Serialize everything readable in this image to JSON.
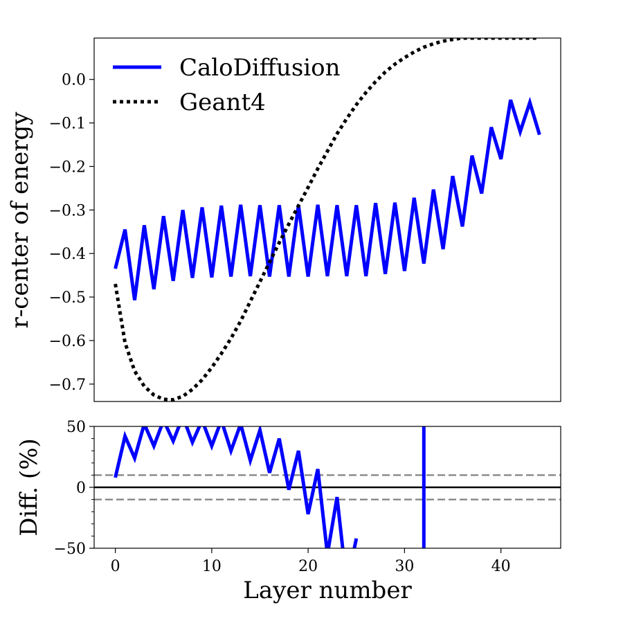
{
  "chart_data": [
    {
      "type": "line",
      "panel": "main",
      "title": "",
      "ylabel": "r-center of energy",
      "xlabel": "",
      "xlim": [
        -2.2,
        46.2
      ],
      "ylim": [
        -0.74,
        0.095
      ],
      "yticks": [
        0.0,
        -0.1,
        -0.2,
        -0.3,
        -0.4,
        -0.5,
        -0.6,
        -0.7
      ],
      "ytick_labels": [
        "0.0",
        "−0.1",
        "−0.2",
        "−0.3",
        "−0.4",
        "−0.5",
        "−0.6",
        "−0.7"
      ],
      "legend_placement": "top-left",
      "grid": false,
      "series": [
        {
          "name": "CaloDiffusion",
          "color": "#0000ff",
          "style": "solid",
          "x": [
            0,
            1,
            2,
            3,
            4,
            5,
            6,
            7,
            8,
            9,
            10,
            11,
            12,
            13,
            14,
            15,
            16,
            17,
            18,
            19,
            20,
            21,
            22,
            23,
            24,
            25,
            26,
            27,
            28,
            29,
            30,
            31,
            32,
            33,
            34,
            35,
            36,
            37,
            38,
            39,
            40,
            41,
            42,
            43,
            44
          ],
          "y": [
            -0.435,
            -0.345,
            -0.507,
            -0.335,
            -0.482,
            -0.314,
            -0.463,
            -0.3,
            -0.456,
            -0.294,
            -0.455,
            -0.29,
            -0.453,
            -0.288,
            -0.452,
            -0.289,
            -0.453,
            -0.289,
            -0.453,
            -0.289,
            -0.453,
            -0.288,
            -0.452,
            -0.289,
            -0.452,
            -0.289,
            -0.452,
            -0.284,
            -0.447,
            -0.283,
            -0.44,
            -0.272,
            -0.423,
            -0.253,
            -0.39,
            -0.222,
            -0.338,
            -0.175,
            -0.262,
            -0.11,
            -0.183,
            -0.047,
            -0.12,
            -0.053,
            -0.127
          ]
        },
        {
          "name": "Geant4",
          "color": "#000000",
          "style": "dotted",
          "x": [
            0,
            1,
            2,
            3,
            4,
            5,
            6,
            7,
            8,
            9,
            10,
            11,
            12,
            13,
            14,
            15,
            16,
            17,
            18,
            19,
            20,
            21,
            22,
            23,
            24,
            25,
            26,
            27,
            28,
            29,
            30,
            31,
            32,
            33,
            34,
            35,
            36,
            37,
            38,
            39,
            40,
            41,
            42,
            43,
            44
          ],
          "y": [
            -0.47,
            -0.605,
            -0.67,
            -0.705,
            -0.725,
            -0.735,
            -0.736,
            -0.728,
            -0.712,
            -0.69,
            -0.662,
            -0.63,
            -0.595,
            -0.555,
            -0.51,
            -0.465,
            -0.42,
            -0.375,
            -0.332,
            -0.29,
            -0.248,
            -0.205,
            -0.165,
            -0.125,
            -0.09,
            -0.058,
            -0.03,
            -0.005,
            0.017,
            0.035,
            0.05,
            0.063,
            0.074,
            0.082,
            0.088,
            0.092,
            0.095,
            0.095,
            0.095,
            0.095,
            0.095,
            0.095,
            0.095,
            0.095,
            0.095
          ]
        }
      ]
    },
    {
      "type": "line",
      "panel": "ratio",
      "title": "",
      "xlabel": "Layer number",
      "ylabel": "Diff.  (%)",
      "xlim": [
        -2.2,
        46.2
      ],
      "ylim": [
        -50,
        50
      ],
      "xticks": [
        0,
        10,
        20,
        30,
        40
      ],
      "xtick_labels": [
        "0",
        "10",
        "20",
        "30",
        "40"
      ],
      "yticks": [
        50,
        0,
        -50
      ],
      "ytick_labels": [
        "50",
        "0",
        "−50"
      ],
      "reference_lines": [
        {
          "y": 0,
          "color": "#000000",
          "style": "solid"
        },
        {
          "y": 10,
          "color": "#808080",
          "style": "dashed"
        },
        {
          "y": -10,
          "color": "#808080",
          "style": "dashed"
        }
      ],
      "grid": false,
      "series": [
        {
          "name": "",
          "color": "#0000ff",
          "style": "solid",
          "x": [
            0,
            1,
            2,
            3,
            4,
            5,
            6,
            7,
            8,
            9,
            10,
            11,
            12,
            13,
            14,
            15,
            16,
            17,
            18,
            19,
            20,
            21,
            22,
            23,
            24,
            25
          ],
          "y": [
            8,
            42,
            24,
            52,
            34,
            55,
            38,
            58,
            37,
            55,
            34,
            55,
            30,
            52,
            22,
            47,
            12,
            40,
            -2,
            30,
            -22,
            15,
            -55,
            -8,
            -80,
            -42
          ]
        },
        {
          "name": "",
          "color": "#0000ff",
          "style": "solid",
          "x": [
            32,
            32
          ],
          "y": [
            -50,
            50
          ]
        }
      ]
    }
  ]
}
